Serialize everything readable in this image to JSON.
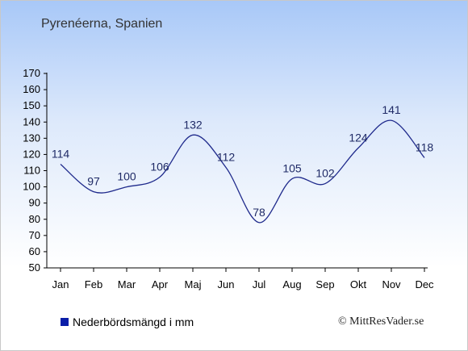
{
  "chart_data": {
    "type": "line",
    "title": "Pyrenéerna, Spanien",
    "categories": [
      "Jan",
      "Feb",
      "Mar",
      "Apr",
      "Maj",
      "Jun",
      "Jul",
      "Aug",
      "Sep",
      "Okt",
      "Nov",
      "Dec"
    ],
    "series": [
      {
        "name": "Nederbördsmängd i mm",
        "values": [
          114,
          97,
          100,
          106,
          132,
          112,
          78,
          105,
          102,
          124,
          141,
          118
        ]
      }
    ],
    "ylim": [
      50,
      170
    ],
    "yticks": [
      50,
      60,
      70,
      80,
      90,
      100,
      110,
      120,
      130,
      140,
      150,
      160,
      170
    ],
    "grid": false,
    "legend_position": "bottom-left",
    "line_color": "#1f2a8c",
    "legend_color": "#0a1ea8"
  },
  "legend": {
    "label": "Nederbördsmängd i mm"
  },
  "copyright": "© MittResVader.se"
}
